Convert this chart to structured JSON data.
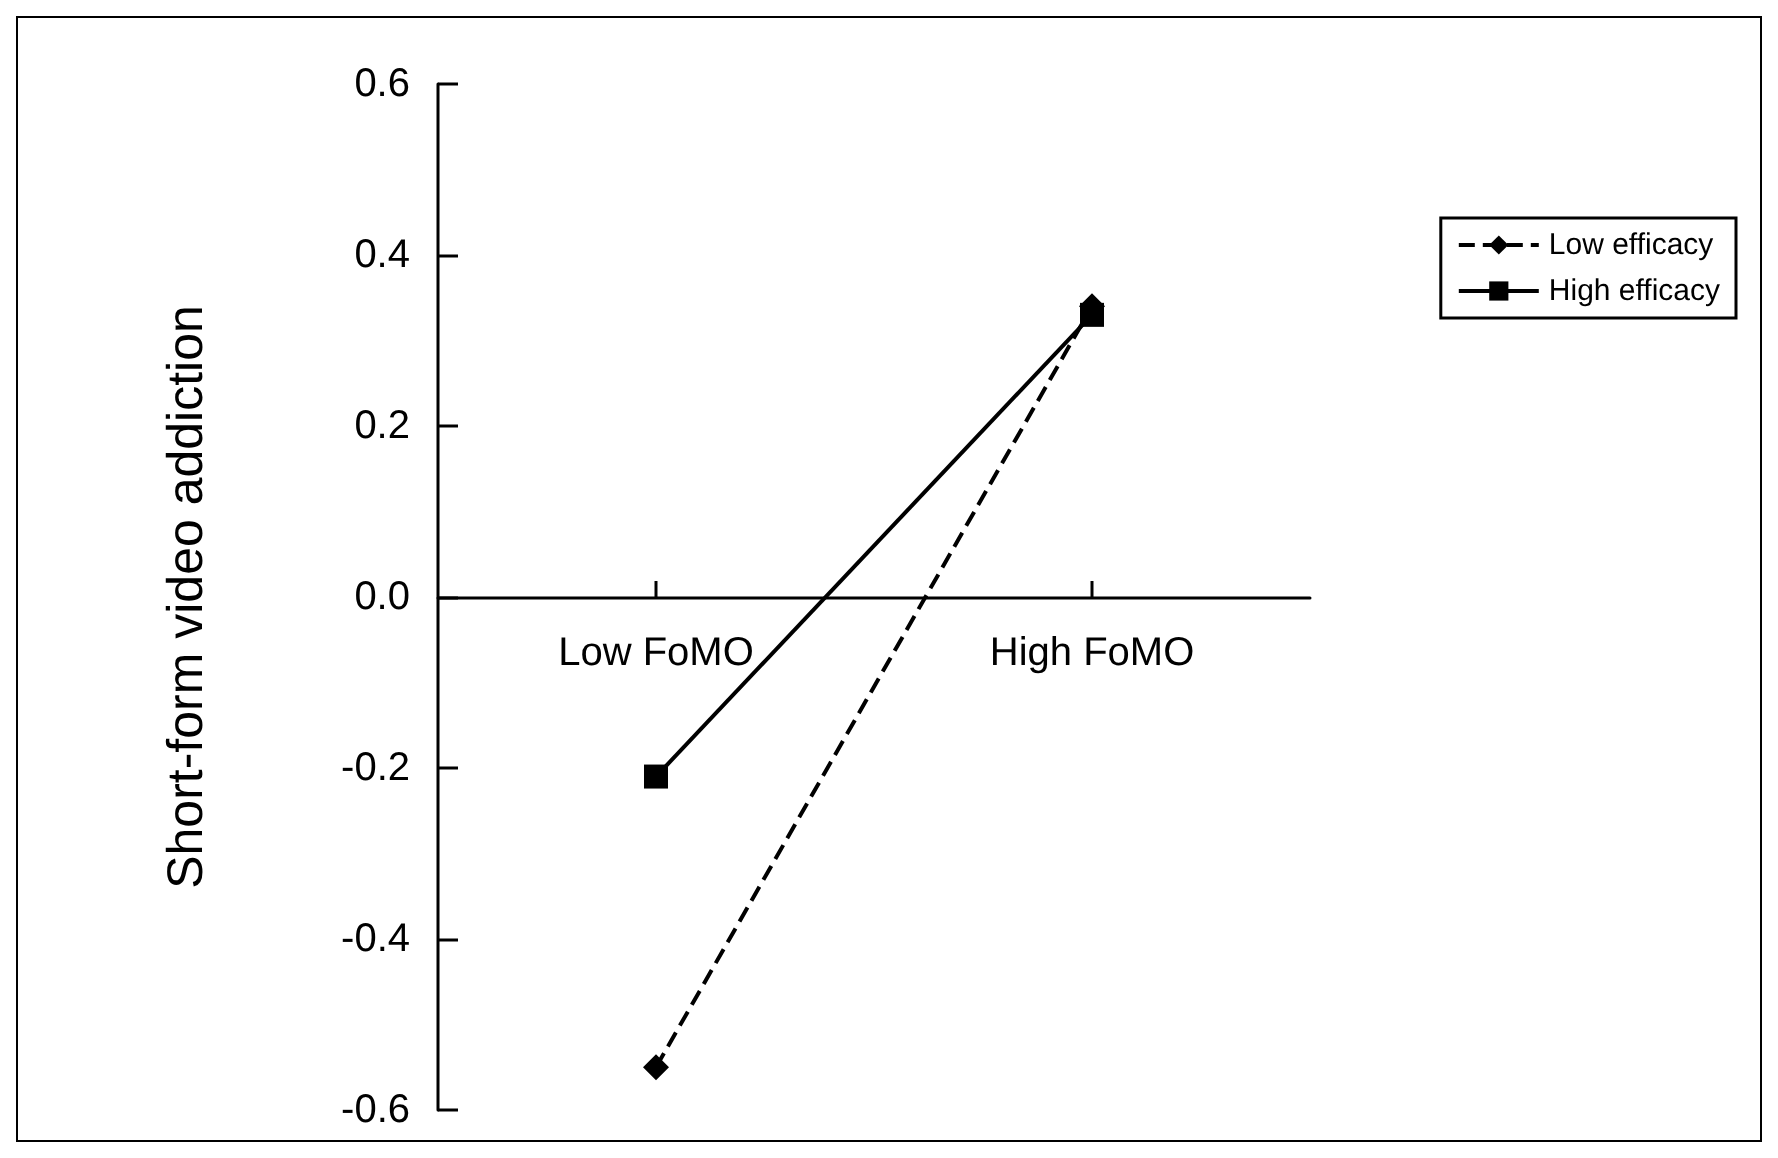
{
  "chart_data": {
    "type": "line",
    "ylabel": "Short-form video addiction",
    "categories": [
      "Low FoMO",
      "High FoMO"
    ],
    "series": [
      {
        "name": "Low efficacy",
        "color": "#000000",
        "values": [
          -0.55,
          0.34
        ],
        "marker": "diamond",
        "line_style": "dashed"
      },
      {
        "name": "High efficacy",
        "color": "#000000",
        "values": [
          -0.21,
          0.33
        ],
        "marker": "square",
        "line_style": "solid"
      }
    ],
    "ylim": [
      -0.6,
      0.6
    ],
    "yticks": [
      {
        "value": -0.6,
        "label": "-0.6"
      },
      {
        "value": -0.4,
        "label": "-0.4"
      },
      {
        "value": -0.2,
        "label": "-0.2"
      },
      {
        "value": 0,
        "label": "0.0"
      },
      {
        "value": 0.2,
        "label": "0.2"
      },
      {
        "value": 0.4,
        "label": "0.4"
      },
      {
        "value": 0.6,
        "label": "0.6"
      }
    ],
    "legend": "right"
  }
}
